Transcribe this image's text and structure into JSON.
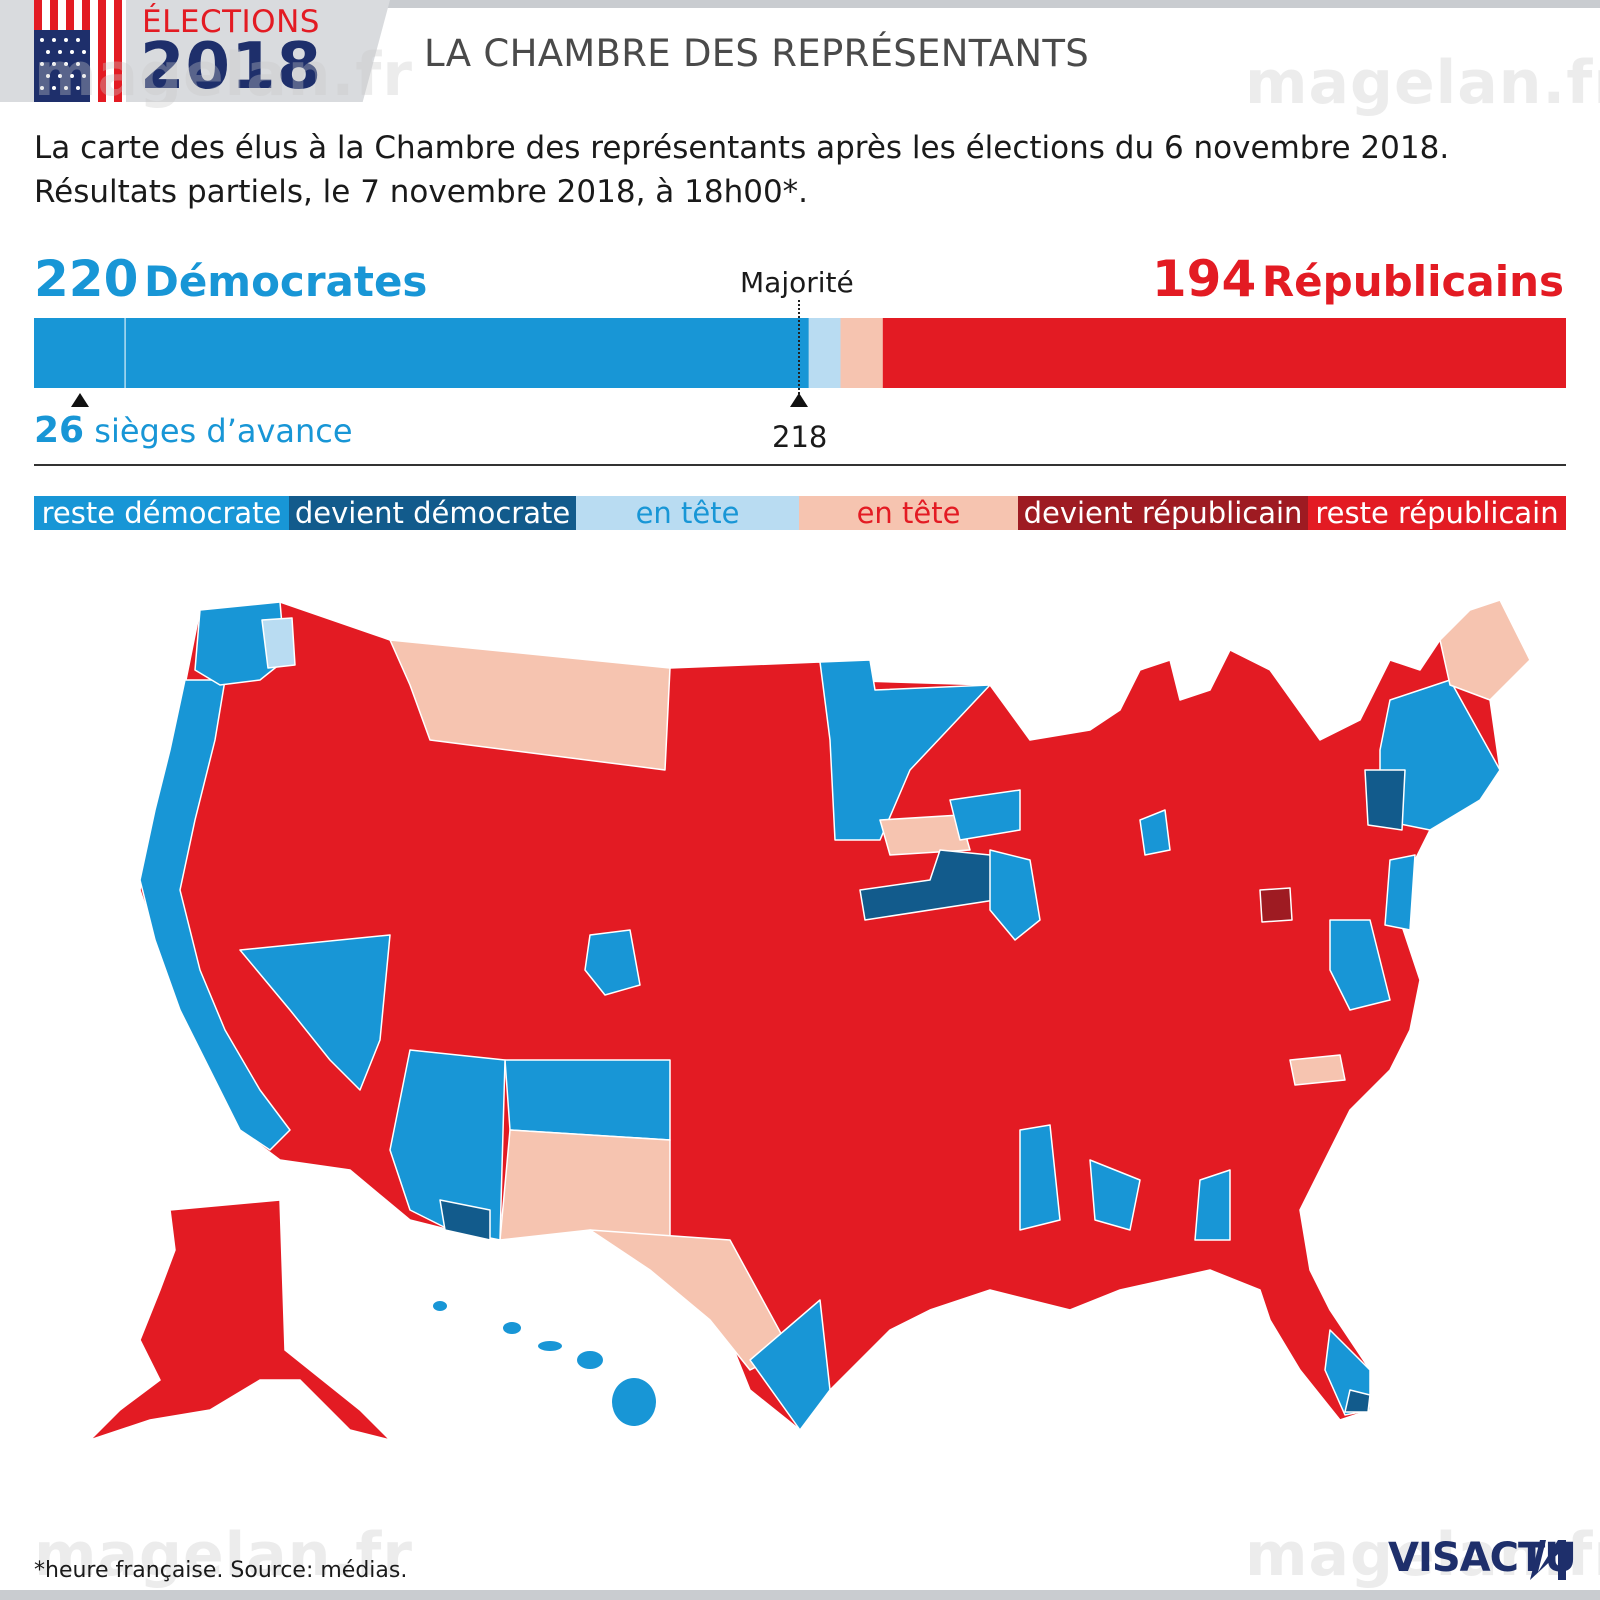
{
  "header": {
    "kicker": "ÉLECTIONS",
    "year": "2018",
    "title": "LA CHAMBRE DES REPRÉSENTANTS",
    "watermark": "magelan.fr"
  },
  "intro": {
    "line1": "La carte des élus à la Chambre des représentants après les élections du 6 novembre 2018.",
    "line2": "Résultats partiels, le 7 novembre 2018, à 18h00*."
  },
  "totals": {
    "democrats_count": "220",
    "democrats_label": "Démocrates",
    "republicans_count": "194",
    "republicans_label": "Républicains",
    "majority_label": "Majorité",
    "majority_seats": "218",
    "lead_count": "26",
    "lead_label": "sièges d’avance"
  },
  "seat_bar": {
    "total_seats": 435,
    "segments": [
      {
        "key": "dem_lead_gain",
        "seats": 26,
        "color": "#1896d6"
      },
      {
        "key": "dem_rest",
        "seats": 194,
        "color": "#1896d6"
      },
      {
        "key": "dem_leading",
        "seats": 9,
        "color": "#b9dcf2"
      },
      {
        "key": "rep_leading",
        "seats": 12,
        "color": "#f6c4b0"
      },
      {
        "key": "rep",
        "seats": 194,
        "color": "#e31b23"
      }
    ]
  },
  "legend": [
    {
      "label": "reste démocrate",
      "bg": "#1896d6",
      "fg": "#ffffff"
    },
    {
      "label": "devient démocrate",
      "bg": "#125b8c",
      "fg": "#ffffff"
    },
    {
      "label": "en tête",
      "bg": "#b9dcf2",
      "fg": "#1896d6"
    },
    {
      "label": "en tête",
      "bg": "#f6c4b0",
      "fg": "#e31b23"
    },
    {
      "label": "devient républicain",
      "bg": "#9e1b22",
      "fg": "#ffffff"
    },
    {
      "label": "reste républicain",
      "bg": "#e31b23",
      "fg": "#ffffff"
    }
  ],
  "colors": {
    "dem": "#1896d6",
    "dem_gain": "#125b8c",
    "dem_lead": "#b9dcf2",
    "rep_lead": "#f6c4b0",
    "rep_gain": "#9e1b22",
    "rep": "#e31b23"
  },
  "footer": {
    "note": "*heure française.  Source: médias.",
    "brand": "VISACTU"
  }
}
